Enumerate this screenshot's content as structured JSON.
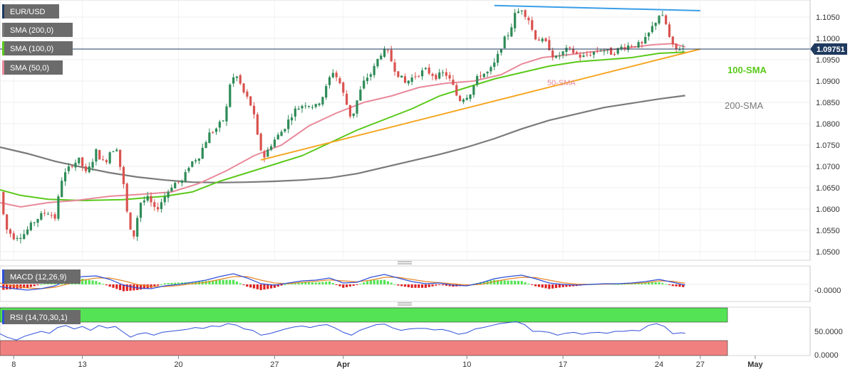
{
  "chart_data": {
    "type": "candlestick",
    "symbol": "EUR/USD",
    "legend": {
      "main": [
        "EUR/USD",
        "SMA (200,0)",
        "SMA (100,0)",
        "SMA (50,0)"
      ],
      "macd": "MACD (12,26,9)",
      "rsi": "RSI (14,70,30,1)"
    },
    "colors": {
      "up": "#2e8b57",
      "down": "#d9534f",
      "sma50": "#e8899a",
      "sma100": "#5ac91a",
      "sma200": "#7a7a7a",
      "support_line": "#f5a623",
      "resistance_line": "#3a9ee8",
      "price_line": "#1f3a5f",
      "rsi_overbought_zone": "#54e354",
      "rsi_oversold_zone": "#f08080",
      "macd_line": "#2f4fd8",
      "signal_line": "#e8892a",
      "hist_up": "#55e355",
      "hist_down": "#dd2222"
    },
    "price_axis": {
      "min": 1.048,
      "max": 1.109,
      "ticks": [
        "1.0500",
        "1.0550",
        "1.0600",
        "1.0650",
        "1.0700",
        "1.0750",
        "1.0800",
        "1.0850",
        "1.0900",
        "1.0950",
        "1.1000",
        "1.1050"
      ],
      "current": "1.09751"
    },
    "x_axis": {
      "start_day": 7,
      "end_day": 66,
      "ticks": [
        {
          "label": "8",
          "day": 8
        },
        {
          "label": "13",
          "day": 13
        },
        {
          "label": "20",
          "day": 20
        },
        {
          "label": "27",
          "day": 27
        },
        {
          "label": "Apr",
          "day": 32
        },
        {
          "label": "10",
          "day": 41
        },
        {
          "label": "17",
          "day": 48
        },
        {
          "label": "24",
          "day": 55
        },
        {
          "label": "27",
          "day": 58
        },
        {
          "label": "May",
          "day": 62
        }
      ]
    },
    "annotations": [
      "50-SMA",
      "100-SMA",
      "200-SMA"
    ],
    "price_anchors": [
      [
        7.0,
        1.064
      ],
      [
        7.4,
        1.0555
      ],
      [
        8.0,
        1.0535
      ],
      [
        8.7,
        1.054
      ],
      [
        9.6,
        1.0575
      ],
      [
        10.4,
        1.0595
      ],
      [
        11.0,
        1.058
      ],
      [
        11.5,
        1.067
      ],
      [
        12.2,
        1.0705
      ],
      [
        12.8,
        1.0715
      ],
      [
        13.3,
        1.068
      ],
      [
        14.0,
        1.0735
      ],
      [
        14.6,
        1.0705
      ],
      [
        15.0,
        1.0735
      ],
      [
        15.5,
        1.0745
      ],
      [
        16.0,
        1.0655
      ],
      [
        16.4,
        1.0555
      ],
      [
        16.7,
        1.053
      ],
      [
        17.2,
        1.0615
      ],
      [
        17.8,
        1.0625
      ],
      [
        18.3,
        1.0595
      ],
      [
        18.9,
        1.0625
      ],
      [
        19.6,
        1.066
      ],
      [
        20.3,
        1.0665
      ],
      [
        20.8,
        1.0705
      ],
      [
        21.5,
        1.0725
      ],
      [
        22.2,
        1.0775
      ],
      [
        22.8,
        1.079
      ],
      [
        23.4,
        1.0815
      ],
      [
        23.8,
        1.0905
      ],
      [
        24.3,
        1.091
      ],
      [
        24.7,
        1.0875
      ],
      [
        25.0,
        1.086
      ],
      [
        25.4,
        1.0835
      ],
      [
        25.8,
        1.076
      ],
      [
        26.2,
        1.072
      ],
      [
        26.8,
        1.0755
      ],
      [
        27.6,
        1.0785
      ],
      [
        28.4,
        1.083
      ],
      [
        29.2,
        1.0848
      ],
      [
        30.0,
        1.084
      ],
      [
        30.6,
        1.087
      ],
      [
        31.2,
        1.0925
      ],
      [
        31.7,
        1.09
      ],
      [
        32.1,
        1.086
      ],
      [
        32.6,
        1.081
      ],
      [
        33.1,
        1.0865
      ],
      [
        33.6,
        1.0905
      ],
      [
        34.1,
        1.092
      ],
      [
        34.7,
        1.0965
      ],
      [
        35.2,
        1.097
      ],
      [
        35.8,
        1.0925
      ],
      [
        36.5,
        1.0895
      ],
      [
        37.3,
        1.0915
      ],
      [
        38.0,
        1.0925
      ],
      [
        38.8,
        1.091
      ],
      [
        39.4,
        1.092
      ],
      [
        39.9,
        1.0895
      ],
      [
        40.4,
        1.0855
      ],
      [
        41.2,
        1.087
      ],
      [
        41.9,
        1.0915
      ],
      [
        42.6,
        1.092
      ],
      [
        43.1,
        1.0945
      ],
      [
        43.6,
        1.099
      ],
      [
        44.1,
        1.1015
      ],
      [
        44.5,
        1.1055
      ],
      [
        45.0,
        1.107
      ],
      [
        45.5,
        1.1045
      ],
      [
        45.9,
        1.1005
      ],
      [
        46.4,
        1.0995
      ],
      [
        46.9,
        1.0985
      ],
      [
        47.4,
        1.095
      ],
      [
        47.9,
        1.0965
      ],
      [
        48.4,
        1.0975
      ],
      [
        48.9,
        1.0965
      ],
      [
        49.4,
        1.0955
      ],
      [
        50.0,
        1.0965
      ],
      [
        50.8,
        1.0975
      ],
      [
        51.6,
        1.0965
      ],
      [
        52.3,
        1.098
      ],
      [
        53.1,
        1.0985
      ],
      [
        53.8,
        1.0985
      ],
      [
        54.4,
        1.102
      ],
      [
        55.0,
        1.1055
      ],
      [
        55.4,
        1.1045
      ],
      [
        55.8,
        1.0995
      ],
      [
        56.1,
        1.0972
      ],
      [
        56.6,
        1.0978
      ],
      [
        56.9,
        1.0975
      ]
    ],
    "sma50_points": [
      [
        7.0,
        1.0615
      ],
      [
        8.5,
        1.0605
      ],
      [
        10.5,
        1.0615
      ],
      [
        12.5,
        1.062
      ],
      [
        15.0,
        1.063
      ],
      [
        17.5,
        1.0635
      ],
      [
        19.5,
        1.064
      ],
      [
        21.5,
        1.066
      ],
      [
        23.5,
        1.069
      ],
      [
        25.5,
        1.0725
      ],
      [
        27.5,
        1.075
      ],
      [
        29.5,
        1.0795
      ],
      [
        31.5,
        1.0825
      ],
      [
        33.5,
        1.085
      ],
      [
        35.5,
        1.0865
      ],
      [
        37.5,
        1.0885
      ],
      [
        39.5,
        1.0895
      ],
      [
        41.5,
        1.09
      ],
      [
        43.5,
        1.0915
      ],
      [
        45.0,
        1.094
      ],
      [
        46.5,
        1.0955
      ],
      [
        48.5,
        1.0962
      ],
      [
        50.5,
        1.097
      ],
      [
        52.5,
        1.0977
      ],
      [
        54.5,
        1.0985
      ],
      [
        56.0,
        1.0988
      ],
      [
        56.9,
        1.098
      ]
    ],
    "sma100_points": [
      [
        7.0,
        1.0645
      ],
      [
        8.5,
        1.0632
      ],
      [
        10.5,
        1.0623
      ],
      [
        13.0,
        1.062
      ],
      [
        16.0,
        1.0622
      ],
      [
        19.0,
        1.063
      ],
      [
        21.0,
        1.064
      ],
      [
        23.0,
        1.0665
      ],
      [
        25.0,
        1.0685
      ],
      [
        27.0,
        1.0705
      ],
      [
        29.0,
        1.0725
      ],
      [
        31.0,
        1.0755
      ],
      [
        33.0,
        1.0785
      ],
      [
        35.0,
        1.081
      ],
      [
        37.0,
        1.0835
      ],
      [
        39.0,
        1.0865
      ],
      [
        41.0,
        1.0885
      ],
      [
        43.0,
        1.0905
      ],
      [
        45.0,
        1.092
      ],
      [
        47.0,
        1.0935
      ],
      [
        49.0,
        1.0945
      ],
      [
        51.0,
        1.095
      ],
      [
        53.0,
        1.0955
      ],
      [
        55.0,
        1.0965
      ],
      [
        56.9,
        1.0968
      ]
    ],
    "sma200_points": [
      [
        7.0,
        1.0745
      ],
      [
        9.0,
        1.073
      ],
      [
        11.0,
        1.0712
      ],
      [
        13.0,
        1.0698
      ],
      [
        15.0,
        1.0685
      ],
      [
        17.0,
        1.0675
      ],
      [
        19.0,
        1.0668
      ],
      [
        21.0,
        1.0663
      ],
      [
        23.0,
        1.0662
      ],
      [
        25.0,
        1.0663
      ],
      [
        27.0,
        1.0665
      ],
      [
        29.0,
        1.0668
      ],
      [
        31.0,
        1.0673
      ],
      [
        33.0,
        1.0683
      ],
      [
        35.0,
        1.0698
      ],
      [
        37.0,
        1.0713
      ],
      [
        39.0,
        1.0728
      ],
      [
        41.0,
        1.0745
      ],
      [
        43.0,
        1.0765
      ],
      [
        45.0,
        1.0788
      ],
      [
        47.0,
        1.0808
      ],
      [
        49.0,
        1.0823
      ],
      [
        51.0,
        1.0838
      ],
      [
        53.0,
        1.0848
      ],
      [
        55.0,
        1.0858
      ],
      [
        56.9,
        1.0866
      ]
    ],
    "trendlines": [
      {
        "name": "support",
        "from": [
          26.0,
          1.0715
        ],
        "to": [
          58.0,
          1.0975
        ]
      },
      {
        "name": "resistance",
        "from": [
          43.0,
          1.1077
        ],
        "to": [
          58.0,
          1.1065
        ]
      }
    ],
    "macd_axis": {
      "tick": "-0.0000"
    },
    "macd_points": [
      [
        7.0,
        -0.15
      ],
      [
        8.0,
        -0.3
      ],
      [
        9.0,
        -0.4
      ],
      [
        10.0,
        -0.3
      ],
      [
        11.0,
        -0.1
      ],
      [
        12.0,
        0.35
      ],
      [
        13.0,
        0.55
      ],
      [
        14.0,
        0.6
      ],
      [
        15.0,
        0.35
      ],
      [
        16.0,
        -0.05
      ],
      [
        17.0,
        -0.25
      ],
      [
        18.0,
        -0.3
      ],
      [
        19.0,
        -0.1
      ],
      [
        20.0,
        0.0
      ],
      [
        21.0,
        0.15
      ],
      [
        22.0,
        0.3
      ],
      [
        23.0,
        0.55
      ],
      [
        24.0,
        0.75
      ],
      [
        25.0,
        0.45
      ],
      [
        26.0,
        0.05
      ],
      [
        27.0,
        -0.05
      ],
      [
        28.0,
        0.1
      ],
      [
        29.0,
        0.25
      ],
      [
        30.0,
        0.3
      ],
      [
        31.0,
        0.45
      ],
      [
        32.0,
        0.1
      ],
      [
        33.0,
        0.15
      ],
      [
        34.0,
        0.5
      ],
      [
        35.0,
        0.7
      ],
      [
        36.0,
        0.45
      ],
      [
        37.0,
        0.2
      ],
      [
        38.0,
        0.05
      ],
      [
        39.0,
        0.1
      ],
      [
        40.0,
        -0.05
      ],
      [
        41.0,
        -0.1
      ],
      [
        42.0,
        0.1
      ],
      [
        43.0,
        0.4
      ],
      [
        44.0,
        0.55
      ],
      [
        45.0,
        0.65
      ],
      [
        46.0,
        0.4
      ],
      [
        47.0,
        0.1
      ],
      [
        48.0,
        0.0
      ],
      [
        49.0,
        -0.05
      ],
      [
        50.0,
        0.0
      ],
      [
        51.0,
        0.05
      ],
      [
        52.0,
        0.05
      ],
      [
        53.0,
        0.1
      ],
      [
        54.0,
        0.2
      ],
      [
        55.0,
        0.35
      ],
      [
        56.0,
        0.15
      ],
      [
        56.9,
        -0.05
      ]
    ],
    "signal_points": [
      [
        7.0,
        0.1
      ],
      [
        8.0,
        -0.1
      ],
      [
        9.0,
        -0.25
      ],
      [
        10.0,
        -0.3
      ],
      [
        11.0,
        -0.2
      ],
      [
        12.0,
        0.05
      ],
      [
        13.0,
        0.3
      ],
      [
        14.0,
        0.45
      ],
      [
        15.0,
        0.45
      ],
      [
        16.0,
        0.25
      ],
      [
        17.0,
        0.0
      ],
      [
        18.0,
        -0.15
      ],
      [
        19.0,
        -0.15
      ],
      [
        20.0,
        -0.08
      ],
      [
        21.0,
        0.05
      ],
      [
        22.0,
        0.15
      ],
      [
        23.0,
        0.35
      ],
      [
        24.0,
        0.55
      ],
      [
        25.0,
        0.55
      ],
      [
        26.0,
        0.3
      ],
      [
        27.0,
        0.1
      ],
      [
        28.0,
        0.05
      ],
      [
        29.0,
        0.15
      ],
      [
        30.0,
        0.22
      ],
      [
        31.0,
        0.32
      ],
      [
        32.0,
        0.25
      ],
      [
        33.0,
        0.18
      ],
      [
        34.0,
        0.3
      ],
      [
        35.0,
        0.5
      ],
      [
        36.0,
        0.5
      ],
      [
        37.0,
        0.35
      ],
      [
        38.0,
        0.2
      ],
      [
        39.0,
        0.12
      ],
      [
        40.0,
        0.05
      ],
      [
        41.0,
        -0.05
      ],
      [
        42.0,
        0.0
      ],
      [
        43.0,
        0.2
      ],
      [
        44.0,
        0.38
      ],
      [
        45.0,
        0.5
      ],
      [
        46.0,
        0.48
      ],
      [
        47.0,
        0.3
      ],
      [
        48.0,
        0.12
      ],
      [
        49.0,
        0.02
      ],
      [
        50.0,
        0.0
      ],
      [
        51.0,
        0.02
      ],
      [
        52.0,
        0.04
      ],
      [
        53.0,
        0.06
      ],
      [
        54.0,
        0.12
      ],
      [
        55.0,
        0.25
      ],
      [
        56.0,
        0.22
      ],
      [
        56.9,
        0.08
      ]
    ],
    "rsi_axis": {
      "ticks": [
        {
          "label": "50.0000",
          "value": 50
        },
        {
          "label": "0.0000",
          "value": 0
        }
      ],
      "overbought": 70,
      "oversold": 30
    },
    "rsi_points": [
      [
        7.0,
        45
      ],
      [
        7.5,
        38
      ],
      [
        8.2,
        32
      ],
      [
        8.8,
        40
      ],
      [
        9.4,
        45
      ],
      [
        10.0,
        50
      ],
      [
        10.6,
        46
      ],
      [
        11.2,
        58
      ],
      [
        11.8,
        62
      ],
      [
        12.4,
        55
      ],
      [
        13.0,
        60
      ],
      [
        13.6,
        52
      ],
      [
        14.2,
        62
      ],
      [
        14.8,
        57
      ],
      [
        15.4,
        60
      ],
      [
        16.0,
        48
      ],
      [
        16.5,
        38
      ],
      [
        17.0,
        44
      ],
      [
        17.6,
        47
      ],
      [
        18.2,
        42
      ],
      [
        18.8,
        48
      ],
      [
        19.4,
        50
      ],
      [
        20.0,
        52
      ],
      [
        20.6,
        54
      ],
      [
        21.2,
        58
      ],
      [
        21.8,
        56
      ],
      [
        22.4,
        61
      ],
      [
        23.0,
        60
      ],
      [
        23.6,
        66
      ],
      [
        24.2,
        63
      ],
      [
        24.8,
        55
      ],
      [
        25.4,
        52
      ],
      [
        26.0,
        42
      ],
      [
        26.6,
        45
      ],
      [
        27.2,
        50
      ],
      [
        27.8,
        55
      ],
      [
        28.4,
        59
      ],
      [
        29.0,
        61
      ],
      [
        29.6,
        58
      ],
      [
        30.2,
        62
      ],
      [
        30.8,
        64
      ],
      [
        31.4,
        57
      ],
      [
        32.0,
        48
      ],
      [
        32.6,
        42
      ],
      [
        33.2,
        52
      ],
      [
        33.8,
        58
      ],
      [
        34.4,
        64
      ],
      [
        35.0,
        65
      ],
      [
        35.6,
        57
      ],
      [
        36.2,
        52
      ],
      [
        36.8,
        55
      ],
      [
        37.4,
        56
      ],
      [
        38.0,
        56
      ],
      [
        38.6,
        53
      ],
      [
        39.2,
        54
      ],
      [
        39.8,
        50
      ],
      [
        40.4,
        44
      ],
      [
        41.0,
        47
      ],
      [
        41.6,
        55
      ],
      [
        42.2,
        58
      ],
      [
        42.8,
        62
      ],
      [
        43.4,
        66
      ],
      [
        44.0,
        68
      ],
      [
        44.6,
        70
      ],
      [
        45.2,
        64
      ],
      [
        45.8,
        50
      ],
      [
        46.4,
        50
      ],
      [
        47.0,
        48
      ],
      [
        47.6,
        42
      ],
      [
        48.2,
        46
      ],
      [
        48.8,
        48
      ],
      [
        49.4,
        44
      ],
      [
        50.0,
        47
      ],
      [
        50.6,
        48
      ],
      [
        51.2,
        46
      ],
      [
        51.8,
        50
      ],
      [
        52.4,
        50
      ],
      [
        53.0,
        52
      ],
      [
        53.6,
        51
      ],
      [
        54.2,
        62
      ],
      [
        54.8,
        66
      ],
      [
        55.4,
        60
      ],
      [
        56.0,
        45
      ],
      [
        56.6,
        47
      ],
      [
        56.9,
        46
      ]
    ]
  }
}
